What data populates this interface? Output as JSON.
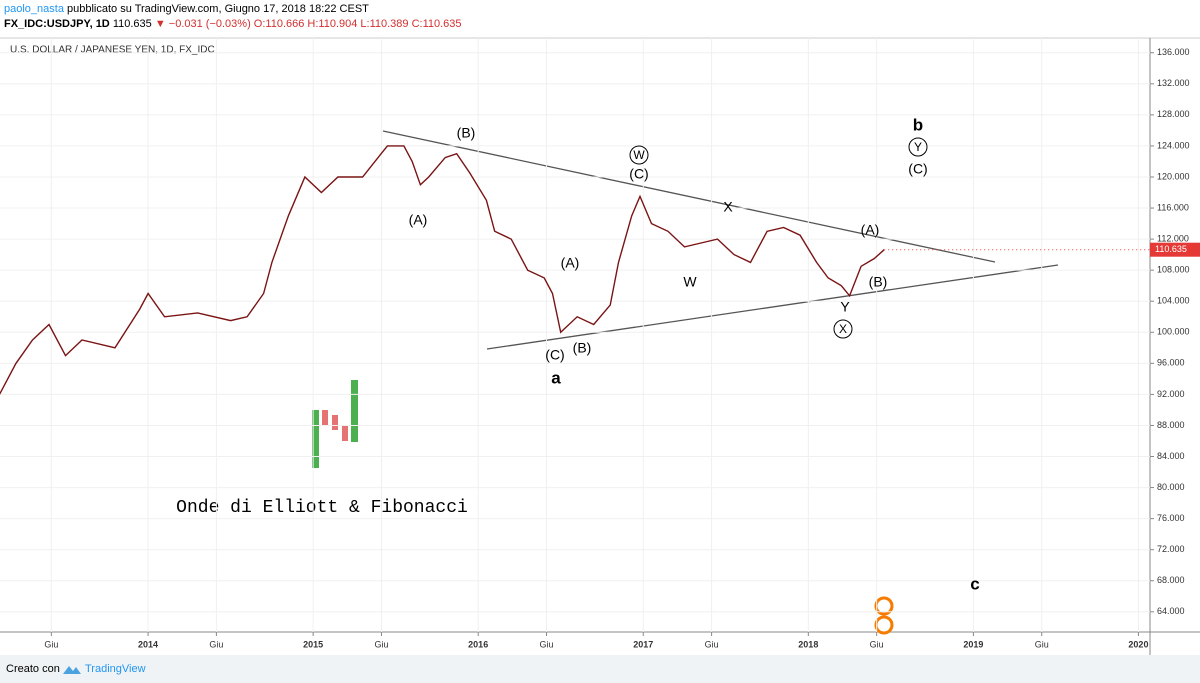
{
  "header": {
    "author": "paolo_nasta",
    "published": "pubblicato su TradingView.com, Giugno 17, 2018 18:22 CEST",
    "symbol": "FX_IDC:USDJPY, 1D",
    "last": "110.635",
    "change": "▼ −0.031 (−0.03%)",
    "ohlc": "O:110.666 H:110.904 L:110.389 C:110.635"
  },
  "footer": {
    "made_with": "Creato con",
    "brand": "TradingView"
  },
  "chart_data": {
    "type": "line",
    "title": "U.S. DOLLAR / JAPANESE YEN, 1D, FX_IDC",
    "color": "#7a1414",
    "x": [
      2013.1,
      2013.2,
      2013.3,
      2013.4,
      2013.5,
      2013.6,
      2013.8,
      2013.95,
      2014.0,
      2014.1,
      2014.3,
      2014.5,
      2014.6,
      2014.7,
      2014.75,
      2014.85,
      2014.95,
      2015.05,
      2015.15,
      2015.3,
      2015.45,
      2015.55,
      2015.6,
      2015.65,
      2015.7,
      2015.8,
      2015.87,
      2015.95,
      2016.05,
      2016.1,
      2016.2,
      2016.3,
      2016.4,
      2016.45,
      2016.5,
      2016.6,
      2016.7,
      2016.8,
      2016.85,
      2016.93,
      2016.98,
      2017.05,
      2017.15,
      2017.25,
      2017.35,
      2017.45,
      2017.55,
      2017.65,
      2017.75,
      2017.85,
      2017.95,
      2018.05,
      2018.12,
      2018.2,
      2018.25,
      2018.32,
      2018.4,
      2018.46
    ],
    "values": [
      92,
      96,
      99,
      101,
      97,
      99,
      98,
      103,
      105,
      102,
      102.5,
      101.5,
      102,
      105,
      109,
      115,
      120,
      118,
      120,
      120,
      124,
      124,
      122,
      119,
      120,
      122.5,
      123,
      120.5,
      117,
      113,
      112,
      108,
      107,
      105,
      100,
      102,
      101,
      103.5,
      109,
      115,
      117.5,
      114,
      113,
      111,
      111.5,
      112,
      110,
      109,
      113,
      113.5,
      112.5,
      109,
      107,
      106,
      104.7,
      108.5,
      109.5,
      110.635
    ],
    "last_label": "110.635",
    "ylim": [
      61.4,
      137.9
    ],
    "yticks": [
      {
        "value": 64,
        "label": "64.000"
      },
      {
        "value": 68,
        "label": "68.000"
      },
      {
        "value": 72,
        "label": "72.000"
      },
      {
        "value": 76,
        "label": "76.000"
      },
      {
        "value": 80,
        "label": "80.000"
      },
      {
        "value": 84,
        "label": "84.000"
      },
      {
        "value": 88,
        "label": "88.000"
      },
      {
        "value": 92,
        "label": "92.000"
      },
      {
        "value": 96,
        "label": "96.000"
      },
      {
        "value": 100,
        "label": "100.000"
      },
      {
        "value": 104,
        "label": "104.000"
      },
      {
        "value": 108,
        "label": "108.000"
      },
      {
        "value": 112,
        "label": "112.000"
      },
      {
        "value": 116,
        "label": "116.000"
      },
      {
        "value": 120,
        "label": "120.000"
      },
      {
        "value": 124,
        "label": "124.000"
      },
      {
        "value": 128,
        "label": "128.000"
      },
      {
        "value": 132,
        "label": "132.000"
      },
      {
        "value": 136,
        "label": "136.000"
      }
    ],
    "xlim": [
      2013.103,
      2020.07
    ],
    "xticks": [
      {
        "value": 2013.414,
        "label": "Giu"
      },
      {
        "value": 2014,
        "label": "2014"
      },
      {
        "value": 2014.414,
        "label": "Giu"
      },
      {
        "value": 2015,
        "label": "2015"
      },
      {
        "value": 2015.414,
        "label": "Giu"
      },
      {
        "value": 2016,
        "label": "2016"
      },
      {
        "value": 2016.414,
        "label": "Giu"
      },
      {
        "value": 2017,
        "label": "2017"
      },
      {
        "value": 2017.414,
        "label": "Giu"
      },
      {
        "value": 2018,
        "label": "2018"
      },
      {
        "value": 2018.414,
        "label": "Giu"
      },
      {
        "value": 2019,
        "label": "2019"
      },
      {
        "value": 2019.414,
        "label": "Giu"
      },
      {
        "value": 2020,
        "label": "2020"
      }
    ],
    "grid": true,
    "note": "Onde di Elliott & Fibonacci",
    "annotations": [
      "(B)",
      "(A)",
      "W",
      "(C)",
      "X",
      "(A)",
      "W",
      "(A)",
      "(C)",
      "(B)",
      "a",
      "Y",
      "X",
      "(B)",
      "b",
      "Y",
      "(C)",
      "c"
    ]
  }
}
